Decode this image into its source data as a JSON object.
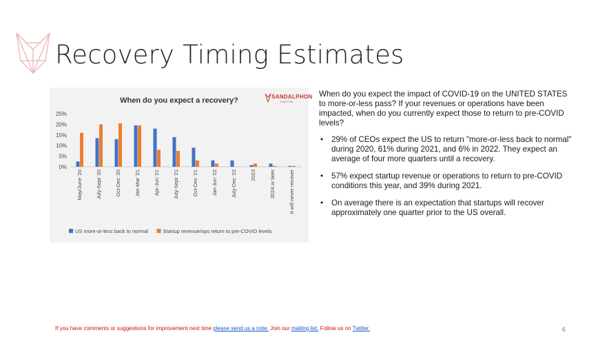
{
  "slide": {
    "title": "Recovery Timing Estimates",
    "page_number": "6"
  },
  "logo": {
    "icon": "geometric-line-logo-icon",
    "color": "#e8b4b4"
  },
  "brand": {
    "name": "SANDALPHON",
    "sub": "CAPITAL",
    "color": "#c0392b"
  },
  "text": {
    "intro": "When do you expect the impact of COVID-19 on the UNITED STATES to more-or-less pass? If your revenues or operations have been impacted, when do you currently expect those to return to pre-COVID levels?",
    "bullets": [
      "29% of CEOs expect the US to return \"more-or-less back to normal\" during 2020, 61% during 2021, and 6% in 2022. They expect an average of four more quarters until a recovery.",
      "57% expect startup revenue or operations to return to pre-COVID conditions this year, and 39% during 2021.",
      "On average there is an expectation that startups will recover approximately one quarter prior to the US overall."
    ]
  },
  "footer": {
    "prefix": "If you have comments or suggestions for improvement next time ",
    "link1": "please send us a note.",
    "mid": " Join our ",
    "link2": "mailing list.",
    "mid2": " Follow us on ",
    "link3": "Twitter."
  },
  "chart_data": {
    "type": "bar",
    "title": "When do you expect a recovery?",
    "categories": [
      "May/June '20",
      "July-Sept '20",
      "Oct-Dec '20",
      "Jan-Mar '21",
      "Apr-Jun '21",
      "July-Sept '21",
      "Oct-Dec '21",
      "Jan-Jun '22",
      "July-Dec '22",
      "2023",
      "2024 or later",
      "It will never recover"
    ],
    "series": [
      {
        "name": "US more-or-less back to normal",
        "color": "#4472c4",
        "values": [
          2.5,
          13.5,
          13,
          19.5,
          18,
          14,
          9,
          3,
          3,
          0.8,
          1.5,
          0.4
        ]
      },
      {
        "name": "Startup revenue/ops return to pre-COVID levels",
        "color": "#ed7d31",
        "values": [
          16,
          20,
          20.5,
          19.5,
          8,
          7.5,
          3,
          1.5,
          0,
          1.5,
          0.4,
          0.4
        ]
      }
    ],
    "ylim": [
      0,
      25
    ],
    "yticks": [
      "0%",
      "5%",
      "10%",
      "15%",
      "20%",
      "25%"
    ],
    "grid": false,
    "legend": "bottom"
  }
}
